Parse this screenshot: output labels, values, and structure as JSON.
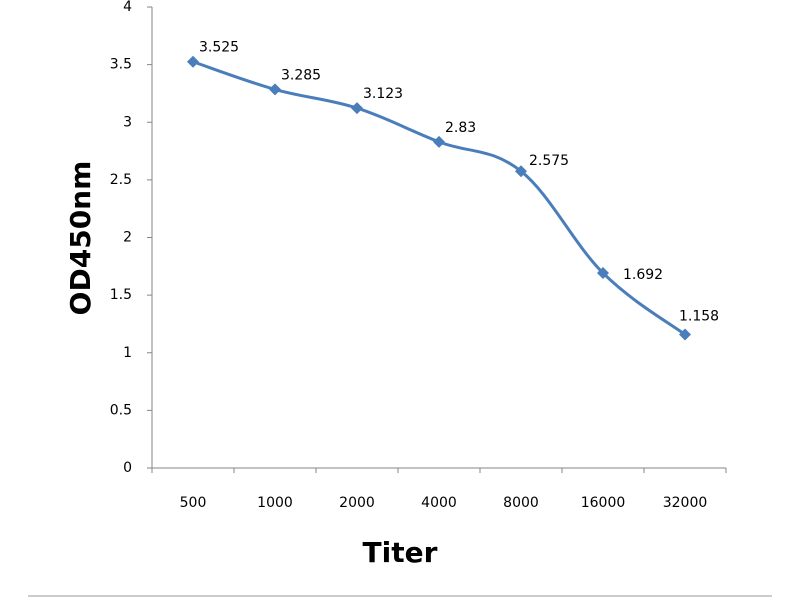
{
  "chart_data": {
    "type": "line",
    "title": "",
    "xlabel": "Titer",
    "ylabel": "OD450nm",
    "categories": [
      "500",
      "1000",
      "2000",
      "4000",
      "8000",
      "16000",
      "32000"
    ],
    "series": [
      {
        "values": [
          3.525,
          3.285,
          3.123,
          2.83,
          2.575,
          1.692,
          1.158
        ],
        "data_labels": [
          "3.525",
          "3.285",
          "3.123",
          "2.83",
          "2.575",
          "1.692",
          "1.158"
        ],
        "color": "#4a7ebb",
        "marker": "diamond",
        "smooth": true
      }
    ],
    "ylim": [
      0,
      4
    ],
    "y_ticks": [
      "0",
      "0.5",
      "1",
      "1.5",
      "2",
      "2.5",
      "3",
      "3.5",
      "4"
    ],
    "grid": false,
    "legend": "none"
  }
}
